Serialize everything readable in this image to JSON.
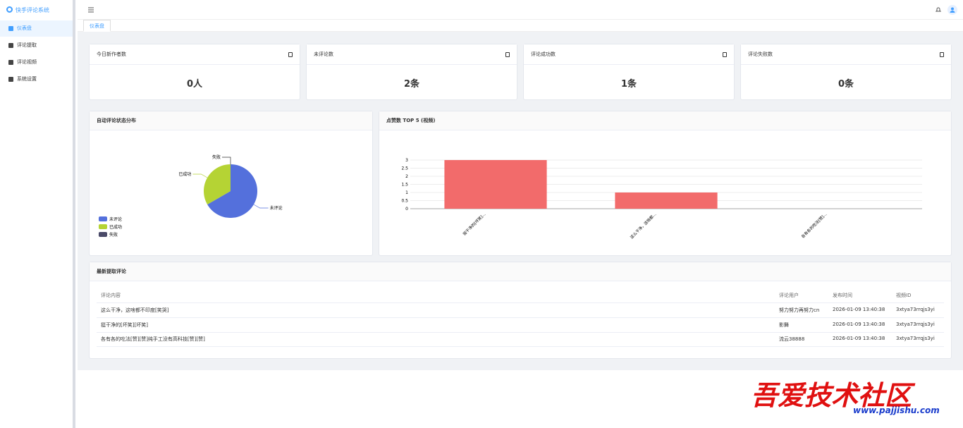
{
  "sidebar": {
    "title": "快手评论系统",
    "menu": [
      "仪表盘",
      "评论提取",
      "评论视频",
      "系统设置"
    ]
  },
  "tabs": [
    "仪表盘"
  ],
  "stats": [
    {
      "label": "今日新作者数",
      "value": "0人"
    },
    {
      "label": "未评论数",
      "value": "2条"
    },
    {
      "label": "评论成功数",
      "value": "1条"
    },
    {
      "label": "评论失败数",
      "value": "0条"
    }
  ],
  "chart_data": [
    {
      "type": "pie",
      "title": "自动评论状态分布",
      "categories": [
        "未评论",
        "已成功",
        "失败"
      ],
      "values": [
        2,
        1,
        0
      ],
      "colors": [
        "#5470dc",
        "#b5d334",
        "#4a4a68"
      ]
    },
    {
      "type": "bar",
      "title": "点赞数 TOP 5 (视频)",
      "categories": [
        "挺干净的[坏笑]...",
        "这么干净，这啥都...",
        "各有各的吃法[赞]..."
      ],
      "values": [
        3,
        1,
        0
      ],
      "color": "#f26b6b",
      "ylim": [
        0,
        3
      ],
      "yticks": [
        0,
        0.5,
        1,
        1.5,
        2,
        2.5,
        3
      ],
      "grid": true
    }
  ],
  "table": {
    "title": "最新提取评论",
    "headers": [
      "评论内容",
      "评论用户",
      "发布时间",
      "视频ID"
    ],
    "rows": [
      [
        "这么干净，这啥都不印度[笑哭]",
        "努力努力再努力cn",
        "2026-01-09 13:40:38",
        "3xtya73rrqjs3yi"
      ],
      [
        "挺干净的[坏笑][坏笑]",
        "影舞",
        "2026-01-09 13:40:38",
        "3xtya73rrqjs3yi"
      ],
      [
        "各有各的吃法[赞][赞]纯手工没有高科技[赞][赞]",
        "流云38888",
        "2026-01-09 13:40:38",
        "3xtya73rrqjs3yi"
      ]
    ]
  },
  "watermark": {
    "title": "吾爱技术社区",
    "url": "www.pajjishu.com"
  }
}
